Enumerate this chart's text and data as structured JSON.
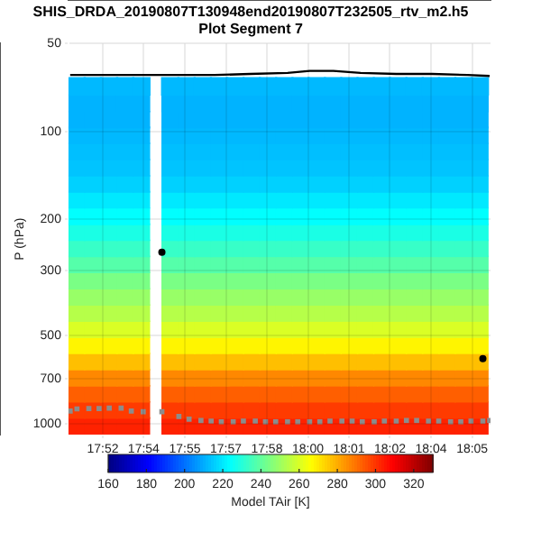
{
  "chart_data": {
    "type": "scatter",
    "title": "SHIS_DRDA_20190807T130948end20190807T232505_rtv_m2.h5",
    "subtitle": "Plot Segment 7",
    "ylabel": "P (hPa)",
    "clabel": "Model TAir [K]",
    "x": [
      17.8563,
      17.8658,
      17.8754,
      17.8849,
      17.8944,
      17.9114,
      17.921,
      17.9306,
      17.9402,
      17.9498,
      17.9594,
      17.969,
      17.9786,
      17.9882,
      17.9977,
      18.0073,
      18.0169,
      18.0265,
      18.0361,
      18.0457,
      18.0553,
      18.0649,
      18.0745,
      18.0841,
      18.0937
    ],
    "clim": [
      160,
      330
    ],
    "cticks": [
      160,
      180,
      200,
      220,
      240,
      260,
      280,
      300,
      320
    ],
    "series": [
      {
        "type": "scatter",
        "marker": "square",
        "values": [
          70,
          70,
          70,
          70,
          70,
          70,
          70,
          70,
          70,
          70,
          70,
          70,
          70,
          70,
          70,
          70,
          70,
          70,
          70,
          70,
          70,
          70,
          70,
          70,
          70
        ],
        "cvalues": [
          212,
          212,
          212,
          212,
          212,
          212,
          212,
          212,
          212,
          212,
          212,
          212,
          212,
          212,
          212,
          212,
          212,
          212,
          212,
          212,
          212,
          212,
          212,
          212,
          212
        ]
      },
      {
        "type": "scatter",
        "marker": "square",
        "values": [
          80,
          80,
          80,
          80,
          80,
          80,
          80,
          80,
          80,
          80,
          80,
          80,
          80,
          80,
          80,
          80,
          80,
          80,
          80,
          80,
          80,
          80,
          80,
          80,
          80
        ],
        "cvalues": [
          211,
          211,
          211,
          211,
          211,
          211,
          211,
          211,
          211,
          211,
          211,
          211,
          211,
          211,
          211,
          211,
          211,
          211,
          211,
          211,
          211,
          211,
          211,
          211,
          211
        ]
      },
      {
        "type": "scatter",
        "marker": "square",
        "values": [
          91,
          91,
          91,
          91,
          91,
          91,
          91,
          91,
          91,
          91,
          91,
          91,
          91,
          91,
          91,
          91,
          91,
          91,
          91,
          91,
          91,
          91,
          91,
          91,
          91
        ],
        "cvalues": [
          211,
          211,
          211,
          211,
          211,
          211,
          211,
          211,
          211,
          211,
          211,
          211,
          211,
          211,
          211,
          211,
          211,
          211,
          211,
          211,
          211,
          211,
          211,
          211,
          211
        ]
      },
      {
        "type": "scatter",
        "marker": "square",
        "values": [
          103,
          103,
          103,
          103,
          103,
          103,
          103,
          103,
          103,
          103,
          103,
          103,
          103,
          103,
          103,
          103,
          103,
          103,
          103,
          103,
          103,
          103,
          103,
          103,
          103
        ],
        "cvalues": [
          212,
          212,
          212,
          212,
          212,
          212,
          212,
          212,
          212,
          212,
          212,
          212,
          212,
          212,
          212,
          212,
          212,
          212,
          212,
          212,
          212,
          212,
          212,
          212,
          212
        ]
      },
      {
        "type": "scatter",
        "marker": "square",
        "values": [
          117,
          117,
          117,
          117,
          117,
          117,
          117,
          117,
          117,
          117,
          117,
          117,
          117,
          117,
          117,
          117,
          117,
          117,
          117,
          117,
          117,
          117,
          117,
          117,
          117
        ],
        "cvalues": [
          213,
          213,
          213,
          213,
          213,
          213,
          213,
          213,
          213,
          213,
          213,
          213,
          213,
          213,
          213,
          213,
          213,
          213,
          213,
          213,
          213,
          213,
          213,
          213,
          213
        ]
      },
      {
        "type": "scatter",
        "marker": "square",
        "values": [
          133,
          133,
          133,
          133,
          133,
          133,
          133,
          133,
          133,
          133,
          133,
          133,
          133,
          133,
          133,
          133,
          133,
          133,
          133,
          133,
          133,
          133,
          133,
          133,
          133
        ],
        "cvalues": [
          214,
          214,
          214,
          214,
          214,
          214,
          214,
          214,
          214,
          214,
          214,
          214,
          214,
          214,
          214,
          214,
          214,
          214,
          214,
          214,
          214,
          214,
          214,
          214,
          214
        ]
      },
      {
        "type": "scatter",
        "marker": "square",
        "values": [
          151,
          151,
          151,
          151,
          151,
          151,
          151,
          151,
          151,
          151,
          151,
          151,
          151,
          151,
          151,
          151,
          151,
          151,
          151,
          151,
          151,
          151,
          151,
          151,
          151
        ],
        "cvalues": [
          216,
          216,
          216,
          216,
          216,
          216,
          216,
          216,
          216,
          216,
          216,
          216,
          216,
          216,
          216,
          216,
          216,
          216,
          216,
          216,
          216,
          216,
          216,
          216,
          216
        ]
      },
      {
        "type": "scatter",
        "marker": "square",
        "values": [
          171,
          171,
          171,
          171,
          171,
          171,
          171,
          171,
          171,
          171,
          171,
          171,
          171,
          171,
          171,
          171,
          171,
          171,
          171,
          171,
          171,
          171,
          171,
          171,
          171
        ],
        "cvalues": [
          220,
          220,
          220,
          220,
          220,
          220,
          220,
          220,
          220,
          220,
          220,
          220,
          220,
          220,
          220,
          220,
          220,
          220,
          220,
          220,
          220,
          220,
          220,
          220,
          220
        ]
      },
      {
        "type": "scatter",
        "marker": "square",
        "values": [
          195,
          195,
          195,
          195,
          195,
          195,
          195,
          195,
          195,
          195,
          195,
          195,
          195,
          195,
          195,
          195,
          195,
          195,
          195,
          195,
          195,
          195,
          195,
          195,
          195
        ],
        "cvalues": [
          224,
          224,
          224,
          224,
          224,
          224,
          224,
          224,
          224,
          224,
          224,
          224,
          224,
          224,
          224,
          224,
          224,
          224,
          224,
          224,
          224,
          224,
          224,
          224,
          224
        ]
      },
      {
        "type": "scatter",
        "marker": "square",
        "values": [
          221,
          221,
          221,
          221,
          221,
          221,
          221,
          221,
          221,
          221,
          221,
          221,
          221,
          221,
          221,
          221,
          221,
          221,
          221,
          221,
          221,
          221,
          221,
          221,
          221
        ],
        "cvalues": [
          228,
          228,
          228,
          228,
          228,
          228,
          228,
          228,
          228,
          228,
          228,
          228,
          228,
          228,
          228,
          228,
          228,
          228,
          228,
          228,
          228,
          228,
          228,
          228,
          228
        ]
      },
      {
        "type": "scatter",
        "marker": "square",
        "values": [
          251,
          251,
          251,
          251,
          251,
          251,
          251,
          251,
          251,
          251,
          251,
          251,
          251,
          251,
          251,
          251,
          251,
          251,
          251,
          251,
          251,
          251,
          251,
          251,
          251
        ],
        "cvalues": [
          233,
          233,
          233,
          233,
          233,
          233,
          233,
          233,
          233,
          233,
          233,
          233,
          233,
          233,
          233,
          233,
          233,
          233,
          233,
          233,
          233,
          233,
          233,
          233,
          233
        ]
      },
      {
        "type": "scatter",
        "marker": "square",
        "values": [
          285,
          285,
          285,
          285,
          285,
          285,
          285,
          285,
          285,
          285,
          285,
          285,
          285,
          285,
          285,
          285,
          285,
          285,
          285,
          285,
          285,
          285,
          285,
          285,
          285
        ],
        "cvalues": [
          238,
          238,
          238,
          238,
          238,
          238,
          238,
          238,
          238,
          238,
          238,
          238,
          238,
          238,
          238,
          238,
          238,
          238,
          238,
          238,
          238,
          238,
          238,
          238,
          238
        ]
      },
      {
        "type": "scatter",
        "marker": "square",
        "values": [
          324,
          324,
          324,
          324,
          324,
          324,
          324,
          324,
          324,
          324,
          324,
          324,
          324,
          324,
          324,
          324,
          324,
          324,
          324,
          324,
          324,
          324,
          324,
          324,
          324
        ],
        "cvalues": [
          244,
          244,
          244,
          244,
          244,
          244,
          244,
          244,
          244,
          244,
          244,
          244,
          244,
          244,
          244,
          244,
          244,
          244,
          244,
          244,
          244,
          244,
          244,
          244,
          244
        ]
      },
      {
        "type": "scatter",
        "marker": "square",
        "values": [
          368,
          368,
          368,
          368,
          368,
          368,
          368,
          368,
          368,
          368,
          368,
          368,
          368,
          368,
          368,
          368,
          368,
          368,
          368,
          368,
          368,
          368,
          368,
          368,
          368
        ],
        "cvalues": [
          249,
          249,
          249,
          249,
          249,
          249,
          249,
          249,
          249,
          249,
          249,
          249,
          249,
          249,
          249,
          249,
          249,
          249,
          249,
          249,
          249,
          249,
          249,
          249,
          249
        ]
      },
      {
        "type": "scatter",
        "marker": "square",
        "values": [
          418,
          418,
          418,
          418,
          418,
          418,
          418,
          418,
          418,
          418,
          418,
          418,
          418,
          418,
          418,
          418,
          418,
          418,
          418,
          418,
          418,
          418,
          418,
          418,
          418
        ],
        "cvalues": [
          254,
          254,
          254,
          254,
          254,
          254,
          254,
          254,
          254,
          254,
          254,
          254,
          254,
          254,
          254,
          254,
          254,
          254,
          254,
          254,
          254,
          254,
          254,
          254,
          254
        ]
      },
      {
        "type": "scatter",
        "marker": "square",
        "values": [
          475,
          475,
          475,
          475,
          475,
          475,
          475,
          475,
          475,
          475,
          475,
          475,
          475,
          475,
          475,
          475,
          475,
          475,
          475,
          475,
          475,
          475,
          475,
          475,
          475
        ],
        "cvalues": [
          260,
          260,
          260,
          260,
          260,
          260,
          260,
          260,
          260,
          260,
          260,
          260,
          260,
          260,
          260,
          260,
          260,
          260,
          260,
          260,
          260,
          260,
          260,
          260,
          260
        ]
      },
      {
        "type": "scatter",
        "marker": "square",
        "values": [
          539,
          539,
          539,
          539,
          539,
          539,
          539,
          539,
          539,
          539,
          539,
          539,
          539,
          539,
          539,
          539,
          539,
          539,
          539,
          539,
          539,
          539,
          539,
          539,
          539
        ],
        "cvalues": [
          268,
          268,
          268,
          268,
          268,
          268,
          268,
          268,
          268,
          268,
          268,
          268,
          268,
          268,
          268,
          268,
          268,
          268,
          268,
          268,
          268,
          268,
          268,
          268,
          268
        ]
      },
      {
        "type": "scatter",
        "marker": "square",
        "values": [
          613,
          613,
          613,
          613,
          613,
          613,
          613,
          613,
          613,
          613,
          613,
          613,
          613,
          613,
          613,
          613,
          613,
          613,
          613,
          613,
          613,
          613,
          613,
          613,
          613
        ],
        "cvalues": [
          277,
          277,
          277,
          277,
          277,
          277,
          277,
          277,
          277,
          277,
          277,
          277,
          277,
          277,
          277,
          277,
          277,
          277,
          277,
          277,
          277,
          277,
          277,
          277,
          277
        ]
      },
      {
        "type": "scatter",
        "marker": "square",
        "values": [
          696,
          696,
          696,
          696,
          696,
          696,
          696,
          696,
          696,
          696,
          696,
          696,
          696,
          696,
          696,
          696,
          696,
          696,
          696,
          696,
          696,
          696,
          696,
          696,
          696
        ],
        "cvalues": [
          286,
          286,
          286,
          286,
          286,
          286,
          286,
          286,
          286,
          286,
          286,
          286,
          286,
          286,
          286,
          286,
          286,
          286,
          286,
          286,
          286,
          286,
          286,
          286,
          286
        ]
      },
      {
        "type": "scatter",
        "marker": "square",
        "values": [
          790,
          790,
          790,
          790,
          790,
          790,
          790,
          790,
          790,
          790,
          790,
          790,
          790,
          790,
          790,
          790,
          790,
          790,
          790,
          790,
          790,
          790,
          790,
          790,
          790
        ],
        "cvalues": [
          293,
          293,
          293,
          293,
          293,
          293,
          293,
          293,
          293,
          293,
          293,
          293,
          293,
          293,
          293,
          293,
          293,
          293,
          293,
          293,
          293,
          293,
          293,
          293,
          293
        ]
      },
      {
        "type": "scatter",
        "marker": "square",
        "values": [
          898,
          898,
          898,
          898,
          898,
          898,
          898,
          898,
          898,
          898,
          898,
          898,
          898,
          898,
          898,
          898,
          898,
          898,
          898,
          898,
          898,
          898,
          898,
          898,
          898
        ],
        "cvalues": [
          299,
          299,
          299,
          299,
          299,
          299,
          299,
          299,
          299,
          299,
          299,
          299,
          299,
          299,
          299,
          299,
          299,
          299,
          299,
          299,
          299,
          299,
          299,
          299,
          299
        ]
      },
      {
        "type": "scatter",
        "marker": "square",
        "values": [
          1019,
          1019,
          1019,
          1019,
          1019,
          1019,
          1019,
          1019,
          1019,
          1019,
          1019,
          1019,
          1019,
          1019,
          1019,
          1019,
          1019,
          1019,
          1019,
          1019,
          1019,
          1019,
          1019,
          1019,
          1019
        ],
        "cvalues": [
          303,
          303,
          303,
          303,
          303,
          303,
          303,
          303,
          303,
          303,
          303,
          303,
          303,
          303,
          303,
          303,
          303,
          303,
          303,
          303,
          303,
          303,
          303,
          303,
          303
        ]
      },
      {
        "type": "line",
        "color": "#000000",
        "marker": "none",
        "x": [
          17.8525,
          17.8735,
          17.8955,
          17.9165,
          17.9375,
          17.9585,
          17.9805,
          17.9935,
          18.0075,
          18.0235,
          18.0445,
          18.0655,
          18.0865,
          18.0995
        ],
        "values": [
          64,
          64,
          64,
          64,
          64,
          63.5,
          63,
          62,
          62,
          63,
          63.5,
          63.5,
          64,
          64.5
        ]
      },
      {
        "type": "scatter",
        "color": "#8c8c8c",
        "marker": "square",
        "x": [
          17.8525,
          17.8565,
          17.8635,
          17.8695,
          17.8755,
          17.8825,
          17.8885,
          17.8955,
          17.9065,
          17.9165,
          17.9225,
          17.9295,
          17.9355,
          17.9415,
          17.9485,
          17.9545,
          17.9615,
          17.9675,
          17.9735,
          17.9805,
          17.9865,
          17.9935,
          17.9995,
          18.0055,
          18.0125,
          18.0185,
          18.0245,
          18.0315,
          18.0375,
          18.0445,
          18.0505,
          18.0565,
          18.0635,
          18.0695,
          18.0765,
          18.0825,
          18.0885,
          18.0955,
          18.0995
        ],
        "values": [
          905,
          890,
          888,
          888,
          885,
          885,
          905,
          910,
          910,
          945,
          965,
          975,
          980,
          985,
          985,
          980,
          980,
          985,
          985,
          985,
          985,
          985,
          985,
          980,
          980,
          980,
          985,
          985,
          980,
          980,
          975,
          975,
          980,
          980,
          985,
          985,
          980,
          980,
          975
        ]
      },
      {
        "type": "scatter",
        "color": "#000000",
        "marker": "circle",
        "x": [
          17.9065,
          18.0955
        ],
        "values": [
          259,
          599
        ]
      }
    ],
    "xlim": [
      17.8515,
      18.1
    ],
    "ylim": [
      1090,
      50
    ],
    "log": "y",
    "xticks": [
      {
        "value": 17.8717,
        "label": "17:52"
      },
      {
        "value": 17.8958,
        "label": "17:54"
      },
      {
        "value": 17.92,
        "label": "17:55"
      },
      {
        "value": 17.9442,
        "label": "17:57"
      },
      {
        "value": 17.9683,
        "label": "17:58"
      },
      {
        "value": 17.9925,
        "label": "18:00"
      },
      {
        "value": 18.0167,
        "label": "18:01"
      },
      {
        "value": 18.0408,
        "label": "18:02"
      },
      {
        "value": 18.065,
        "label": "18:04"
      },
      {
        "value": 18.0892,
        "label": "18:05"
      }
    ],
    "yticks": [
      50,
      100,
      200,
      300,
      500,
      700,
      1000
    ],
    "grid": true,
    "legend": false
  }
}
